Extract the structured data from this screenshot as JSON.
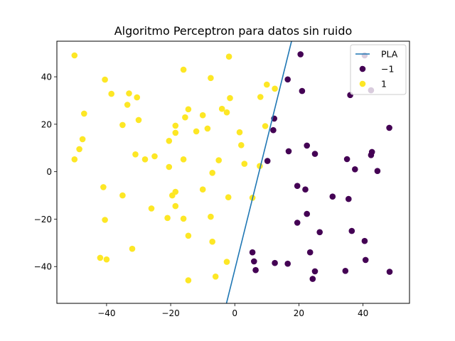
{
  "chart_data": {
    "type": "scatter",
    "title": "Algoritmo Perceptron para datos sin ruido",
    "xlabel": "",
    "ylabel": "",
    "xlim": [
      -55.5,
      54.5
    ],
    "ylim": [
      -55.5,
      55
    ],
    "xticks": [
      -40,
      -20,
      0,
      20,
      40
    ],
    "yticks": [
      -40,
      -20,
      0,
      20,
      40
    ],
    "grid": false,
    "legend_position": "top-right",
    "line": {
      "name": "PLA",
      "color": "#1f77b4",
      "points": [
        [
          -2.6,
          -55.5
        ],
        [
          17.7,
          55
        ]
      ]
    },
    "series": [
      {
        "name": "−1",
        "color": "#440154",
        "points": [
          [
            20.5,
            49.5
          ],
          [
            16.5,
            38.9
          ],
          [
            21,
            34
          ],
          [
            36,
            32.3
          ],
          [
            42.5,
            34.3
          ],
          [
            40.5,
            49
          ],
          [
            12.3,
            22.4
          ],
          [
            12,
            17.5
          ],
          [
            48.2,
            18.5
          ],
          [
            22.5,
            11
          ],
          [
            16.8,
            8.6
          ],
          [
            25,
            7.5
          ],
          [
            35,
            5.3
          ],
          [
            42.8,
            8.3
          ],
          [
            42.5,
            7
          ],
          [
            10.2,
            4.5
          ],
          [
            37.5,
            1
          ],
          [
            44.5,
            0.3
          ],
          [
            19.5,
            -6
          ],
          [
            22,
            -7.5
          ],
          [
            30.5,
            -10.5
          ],
          [
            35.5,
            -11.5
          ],
          [
            22.5,
            -17.8
          ],
          [
            19.5,
            -21.5
          ],
          [
            26.5,
            -25.5
          ],
          [
            36.5,
            -25
          ],
          [
            40.5,
            -29.2
          ],
          [
            5.5,
            -34
          ],
          [
            23.5,
            -34
          ],
          [
            6,
            -37.8
          ],
          [
            12.5,
            -38.5
          ],
          [
            16.5,
            -38.8
          ],
          [
            40.8,
            -37.2
          ],
          [
            6.5,
            -41.5
          ],
          [
            25,
            -42
          ],
          [
            34.5,
            -41.8
          ],
          [
            48.3,
            -42.2
          ],
          [
            24.3,
            -45.2
          ]
        ]
      },
      {
        "name": "1",
        "color": "#fde725",
        "points": [
          [
            -50,
            49
          ],
          [
            -1.8,
            48.5
          ],
          [
            -16,
            43
          ],
          [
            -7.5,
            39.5
          ],
          [
            -40.5,
            38.8
          ],
          [
            10,
            36.7
          ],
          [
            -38.5,
            32.8
          ],
          [
            -33,
            33
          ],
          [
            -30.5,
            31.3
          ],
          [
            12.5,
            35
          ],
          [
            -1.5,
            31
          ],
          [
            8,
            31.5
          ],
          [
            -33.5,
            28.2
          ],
          [
            -4,
            26.5
          ],
          [
            -14.5,
            26.3
          ],
          [
            -2.5,
            25
          ],
          [
            -47,
            24.5
          ],
          [
            -10,
            23.8
          ],
          [
            -15.5,
            22.9
          ],
          [
            -30,
            21.8
          ],
          [
            -35,
            19.7
          ],
          [
            -18.5,
            19.4
          ],
          [
            9.5,
            19.2
          ],
          [
            -8.5,
            18.2
          ],
          [
            -12,
            17
          ],
          [
            -18.5,
            16.4
          ],
          [
            1.5,
            16.6
          ],
          [
            -47.5,
            13.7
          ],
          [
            -20.5,
            13
          ],
          [
            2,
            11.2
          ],
          [
            -48.5,
            9.5
          ],
          [
            -31,
            7.3
          ],
          [
            -25,
            6.5
          ],
          [
            -28,
            5.2
          ],
          [
            -50,
            5.2
          ],
          [
            -16,
            5.2
          ],
          [
            -5,
            4.8
          ],
          [
            3,
            3.3
          ],
          [
            7.8,
            2.4
          ],
          [
            -20.5,
            2
          ],
          [
            -7,
            -0.5
          ],
          [
            -41,
            -6.5
          ],
          [
            -10,
            -7.5
          ],
          [
            -18.5,
            -8.5
          ],
          [
            -35,
            -10
          ],
          [
            -19.5,
            -10
          ],
          [
            -2,
            -10.8
          ],
          [
            5.5,
            -11
          ],
          [
            -26,
            -15.5
          ],
          [
            -18.5,
            -14.5
          ],
          [
            -21,
            -19.5
          ],
          [
            -16,
            -19.8
          ],
          [
            -7.5,
            -19
          ],
          [
            -40.5,
            -20.3
          ],
          [
            -14.5,
            -27
          ],
          [
            -7,
            -29.5
          ],
          [
            -32,
            -32.5
          ],
          [
            -42,
            -36.3
          ],
          [
            -40,
            -37
          ],
          [
            -2.5,
            -38
          ],
          [
            -6,
            -44.2
          ],
          [
            -14.5,
            -45.8
          ]
        ]
      }
    ]
  }
}
